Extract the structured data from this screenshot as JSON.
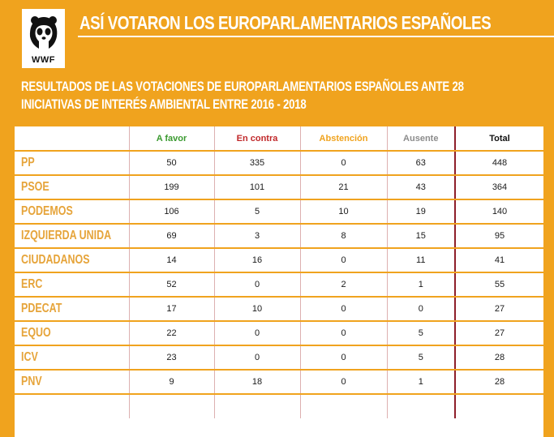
{
  "logo": {
    "text": "WWF"
  },
  "header": {
    "title": "ASÍ VOTARON LOS EUROPARLAMENTARIOS ESPAÑOLES",
    "subtitle": "RESULTADOS DE LAS VOTACIONES DE EUROPARLAMENTARIOS ESPAÑOLES ANTE 28 INICIATIVAS DE INTERÉS AMBIENTAL ENTRE 2016 - 2018"
  },
  "colors": {
    "background": "#f0a31e",
    "a_favor": "#3a9a2f",
    "en_contra": "#c0282a",
    "abstencion": "#f0a31e",
    "ausente": "#8c8c8c",
    "total": "#111111",
    "party": "#e6a43a"
  },
  "chart_data": {
    "type": "table",
    "title": "ASÍ VOTARON LOS EUROPARLAMENTARIOS ESPAÑOLES",
    "subtitle": "RESULTADOS DE LAS VOTACIONES DE EUROPARLAMENTARIOS ESPAÑOLES ANTE 28 INICIATIVAS DE INTERÉS AMBIENTAL ENTRE 2016 - 2018",
    "columns": [
      "",
      "A favor",
      "En contra",
      "Abstención",
      "Ausente",
      "Total"
    ],
    "rows": [
      {
        "party": "PP",
        "values": [
          "50",
          "335",
          "0",
          "63",
          "448"
        ]
      },
      {
        "party": "PSOE",
        "values": [
          "199",
          "101",
          "21",
          "43",
          "364"
        ]
      },
      {
        "party": "PODEMOS",
        "values": [
          "106",
          "5",
          "10",
          "19",
          "140"
        ]
      },
      {
        "party": "IZQUIERDA UNIDA",
        "values": [
          "69",
          "3",
          "8",
          "15",
          "95"
        ]
      },
      {
        "party": "CIUDADANOS",
        "values": [
          "14",
          "16",
          "0",
          "11",
          "41"
        ]
      },
      {
        "party": "ERC",
        "values": [
          "52",
          "0",
          "2",
          "1",
          "55"
        ]
      },
      {
        "party": "PDECAT",
        "values": [
          "17",
          "10",
          "0",
          "0",
          "27"
        ]
      },
      {
        "party": "EQUO",
        "values": [
          "22",
          "0",
          "0",
          "5",
          "27"
        ]
      },
      {
        "party": "ICV",
        "values": [
          "23",
          "0",
          "0",
          "5",
          "28"
        ]
      },
      {
        "party": "PNV",
        "values": [
          "9",
          "18",
          "0",
          "1",
          "28"
        ]
      }
    ]
  }
}
